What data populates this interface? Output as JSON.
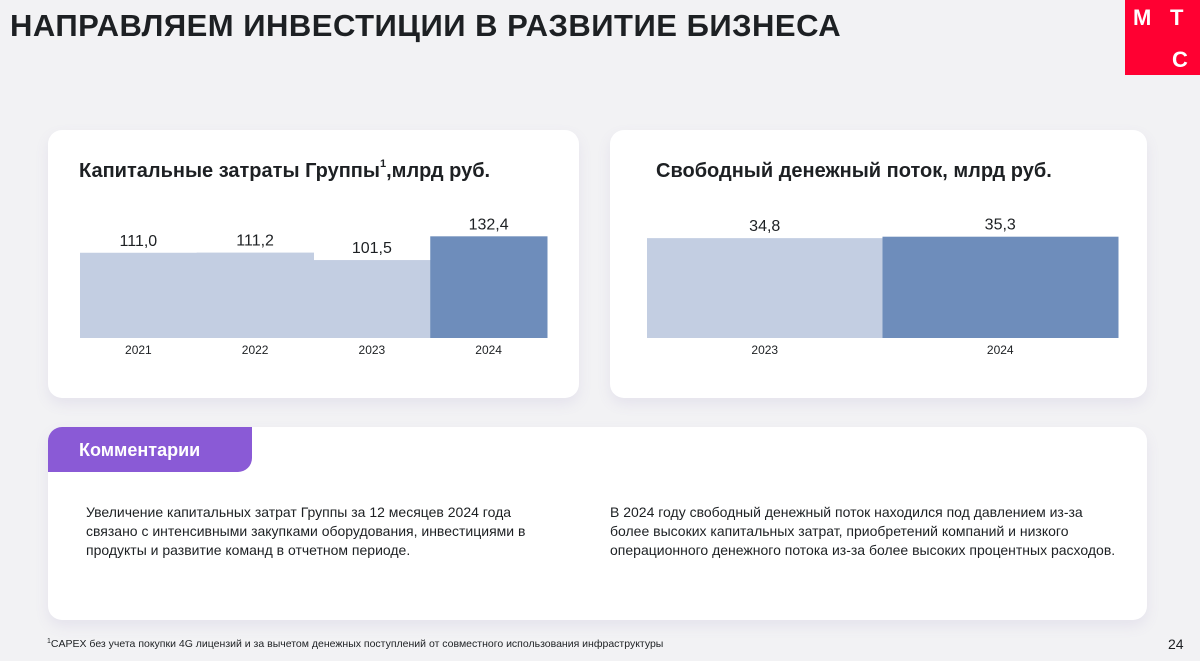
{
  "page": {
    "title": "НАПРАВЛЯЕМ ИНВЕСТИЦИИ В РАЗВИТИЕ БИЗНЕСА",
    "logo_letters": [
      "М",
      "Т",
      "С"
    ],
    "page_number": "24",
    "footnote_mark": "1",
    "footnote": "CAPEX без учета покупки 4G лицензий и за вычетом денежных поступлений от совместного использования инфраструктуры"
  },
  "colors": {
    "light_bar": "#c3cee2",
    "dark_bar": "#6e8dbb",
    "accent_purple": "#8a5ad6",
    "logo_red": "#ff0032"
  },
  "chart_data": [
    {
      "type": "bar",
      "title": "Капитальные затраты Группы",
      "title_superscript": "1",
      "title_unit": ",млрд руб.",
      "categories": [
        "2021",
        "2022",
        "2023",
        "2024"
      ],
      "values": [
        111.0,
        111.2,
        101.5,
        132.4
      ],
      "value_labels": [
        "111,0",
        "111,2",
        "101,5",
        "132,4"
      ],
      "highlight": [
        false,
        false,
        false,
        true
      ],
      "grid": false,
      "legend": "none"
    },
    {
      "type": "bar",
      "title": "Свободный денежный поток, млрд руб.",
      "categories": [
        "2023",
        "2024"
      ],
      "values": [
        34.8,
        35.3
      ],
      "value_labels": [
        "34,8",
        "35,3"
      ],
      "highlight": [
        false,
        true
      ],
      "grid": false,
      "legend": "none"
    }
  ],
  "comments": {
    "tab_label": "Комментарии",
    "left": "Увеличение капитальных затрат Группы за 12 месяцев 2024 года связано с интенсивными закупками оборудования, инвестициями в продукты и развитие команд в отчетном периоде.",
    "right": "В 2024 году свободный денежный поток находился под давлением из-за более высоких капитальных затрат, приобретений компаний и низкого операционного денежного потока из-за более высоких процентных расходов."
  }
}
